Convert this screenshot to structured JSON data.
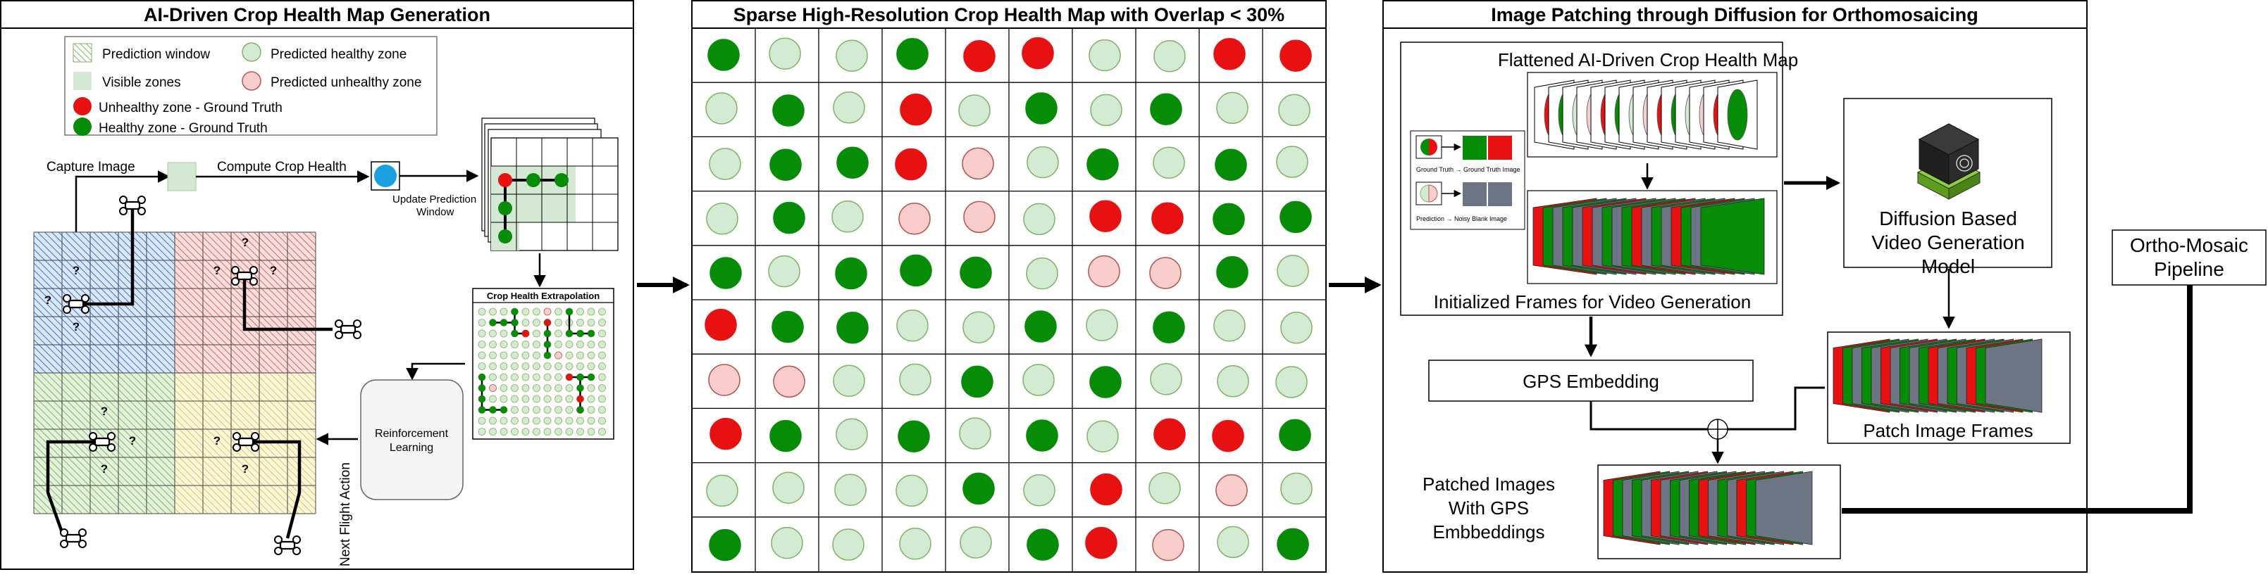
{
  "colors": {
    "healthy": "#078c07",
    "unhealthy": "#e81111",
    "pred_healthy": "#d4ebd3",
    "pred_healthy_stroke": "#82b366",
    "pred_unhealthy": "#f8cecc",
    "pred_unhealthy_stroke": "#b85450",
    "frame_gray": "#6d7584",
    "blue_zone": "#dae8fc",
    "red_zone": "#f8cecc",
    "green_zone": "#d5e8d4",
    "yellow_zone": "#fff2cc",
    "drone_dot": "#1ba1e2"
  },
  "panel1": {
    "title": "AI-Driven Crop Health Map Generation",
    "legend": {
      "prediction_window": "Prediction window",
      "visible_zones": "Visible zones",
      "predicted_healthy": "Predicted healthy zone",
      "predicted_unhealthy": "Predicted unhealthy zone",
      "unhealthy_gt": "Unhealthy zone - Ground Truth",
      "healthy_gt": "Healthy zone - Ground Truth"
    },
    "capture_image": "Capture Image",
    "compute_crop_health": "Compute Crop Health",
    "update_prediction_line1": "Update Prediction",
    "update_prediction_line2": "Window",
    "extrapolation_title": "Crop Health Extrapolation",
    "rl_line1": "Reinforcement",
    "rl_line2": "Learning",
    "next_flight_action": "Next Flight Action",
    "unknown_mark": "?"
  },
  "panel2": {
    "title": "Sparse High-Resolution Crop Health Map with Overlap < 30%",
    "grid": [
      [
        "H",
        "PH",
        "PH",
        "H",
        "U",
        "U",
        "PH",
        "PH",
        "U",
        "U"
      ],
      [
        "PH",
        "H",
        "PH",
        "U",
        "PH",
        "H",
        "PH",
        "H",
        "PH",
        "PH"
      ],
      [
        "PH",
        "H",
        "H",
        "U",
        "PU",
        "PH",
        "H",
        "PH",
        "H",
        "PH"
      ],
      [
        "PH",
        "H",
        "PH",
        "PU",
        "PU",
        "PH",
        "U",
        "U",
        "H",
        "H"
      ],
      [
        "H",
        "PH",
        "H",
        "H",
        "H",
        "PH",
        "PU",
        "PU",
        "H",
        "PH"
      ],
      [
        "U",
        "H",
        "H",
        "PH",
        "PH",
        "H",
        "PH",
        "H",
        "PH",
        "PH"
      ],
      [
        "PU",
        "PU",
        "PH",
        "PH",
        "H",
        "PH",
        "H",
        "PH",
        "PH",
        "PH"
      ],
      [
        "U",
        "H",
        "PH",
        "H",
        "PH",
        "H",
        "PH",
        "U",
        "U",
        "H"
      ],
      [
        "PH",
        "PH",
        "PH",
        "PH",
        "H",
        "PH",
        "U",
        "PH",
        "PU",
        "PH"
      ],
      [
        "H",
        "PH",
        "PH",
        "PH",
        "PH",
        "H",
        "U",
        "PU",
        "PH",
        "H"
      ]
    ]
  },
  "panel3": {
    "title": "Image Patching through Diffusion for Orthomosaicing",
    "flattened_title": "Flattened AI-Driven Crop Health Map",
    "gt_caption": "Ground Truth → Ground Truth Image",
    "pred_caption": "Prediction → Noisy Blank Image",
    "initialized_frames": "Initialized Frames for Video Generation",
    "diffusion_line1": "Diffusion Based",
    "diffusion_line2": "Video Generation",
    "diffusion_line3": "Model",
    "gps_embedding": "GPS Embedding",
    "patch_image_frames": "Patch Image Frames",
    "patched_line1": "Patched Images",
    "patched_line2": "With GPS",
    "patched_line3": "Embbeddings"
  },
  "ortho": {
    "line1": "Ortho-Mosaic",
    "line2": "Pipeline"
  }
}
